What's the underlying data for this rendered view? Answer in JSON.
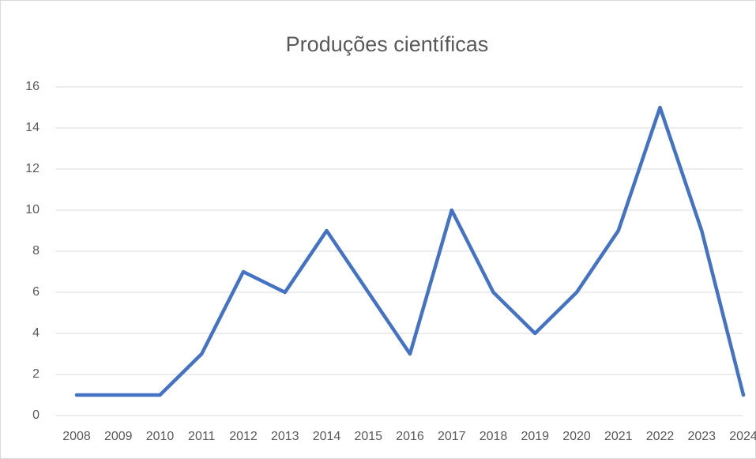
{
  "chart_data": {
    "type": "line",
    "title": "Produções científicas",
    "categories": [
      "2008",
      "2009",
      "2010",
      "2011",
      "2012",
      "2013",
      "2014",
      "2015",
      "2016",
      "2017",
      "2018",
      "2019",
      "2020",
      "2021",
      "2022",
      "2023",
      "2024"
    ],
    "series": [
      {
        "name": null,
        "color": "#4472c4",
        "values": [
          1,
          1,
          1,
          3,
          7,
          6,
          9,
          6,
          3,
          10,
          6,
          4,
          6,
          9,
          15,
          9,
          1
        ]
      }
    ],
    "ylim": [
      0,
      16
    ],
    "yticks": [
      0,
      2,
      4,
      6,
      8,
      10,
      12,
      14,
      16
    ],
    "grid": true
  }
}
